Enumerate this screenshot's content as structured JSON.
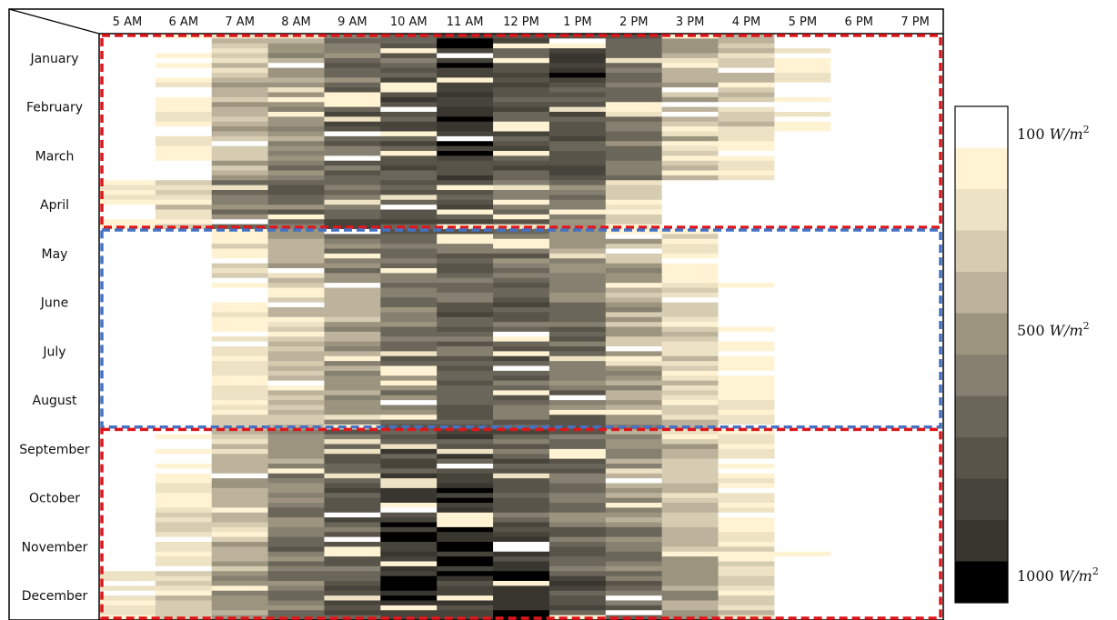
{
  "chart_data": {
    "type": "heatmap",
    "hours": [
      "5 AM",
      "6 AM",
      "7 AM",
      "8 AM",
      "9 AM",
      "10 AM",
      "11 AM",
      "12 PM",
      "1 PM",
      "2 PM",
      "3 PM",
      "4 PM",
      "5 PM",
      "6 PM",
      "7 PM"
    ],
    "months": [
      "January",
      "February",
      "March",
      "April",
      "May",
      "June",
      "July",
      "August",
      "September",
      "October",
      "November",
      "December"
    ],
    "unit": "W/m²",
    "colorbar": {
      "labels": [
        {
          "value": 100,
          "text": "100 W/m2"
        },
        {
          "value": 500,
          "text": "500 W/m2"
        },
        {
          "value": 1000,
          "text": "1000 W/m2"
        }
      ],
      "colors": [
        "#ffffff",
        "#fff3d4",
        "#eee2c4",
        "#d6ccb2",
        "#bdb39c",
        "#9c947f",
        "#868070",
        "#6b665a",
        "#58544a",
        "#47443b",
        "#38362f",
        "#000000"
      ]
    },
    "matrix_monthly_mean": [
      [
        100,
        150,
        350,
        500,
        630,
        720,
        930,
        780,
        880,
        650,
        480,
        380,
        200,
        100,
        100
      ],
      [
        100,
        200,
        430,
        560,
        700,
        800,
        960,
        770,
        740,
        620,
        450,
        300,
        120,
        100,
        100
      ],
      [
        100,
        170,
        400,
        560,
        650,
        750,
        880,
        760,
        730,
        620,
        400,
        240,
        100,
        100,
        100
      ],
      [
        180,
        350,
        580,
        640,
        720,
        720,
        740,
        640,
        560,
        300,
        100,
        100,
        100,
        100,
        100
      ],
      [
        100,
        100,
        250,
        450,
        580,
        660,
        680,
        650,
        560,
        450,
        260,
        100,
        100,
        100,
        100
      ],
      [
        100,
        100,
        120,
        300,
        470,
        600,
        700,
        710,
        600,
        450,
        310,
        140,
        100,
        100,
        100
      ],
      [
        100,
        100,
        200,
        360,
        520,
        640,
        690,
        700,
        630,
        450,
        320,
        130,
        100,
        100,
        100
      ],
      [
        100,
        100,
        220,
        420,
        520,
        600,
        680,
        660,
        630,
        540,
        330,
        190,
        100,
        100,
        100
      ],
      [
        100,
        140,
        360,
        490,
        680,
        780,
        790,
        700,
        670,
        500,
        380,
        200,
        100,
        100,
        100
      ],
      [
        100,
        240,
        420,
        620,
        760,
        880,
        880,
        720,
        600,
        470,
        370,
        240,
        100,
        100,
        100
      ],
      [
        100,
        230,
        380,
        620,
        720,
        870,
        930,
        860,
        700,
        570,
        440,
        300,
        140,
        100,
        100
      ],
      [
        200,
        300,
        500,
        620,
        740,
        900,
        890,
        930,
        780,
        660,
        500,
        330,
        110,
        100,
        100
      ]
    ],
    "highlights": [
      {
        "color": "#e0161b",
        "months": [
          "January",
          "April"
        ]
      },
      {
        "color": "#4472c4",
        "months": [
          "May",
          "September"
        ]
      },
      {
        "color": "#e0161b",
        "months": [
          "September",
          "December"
        ]
      }
    ]
  }
}
